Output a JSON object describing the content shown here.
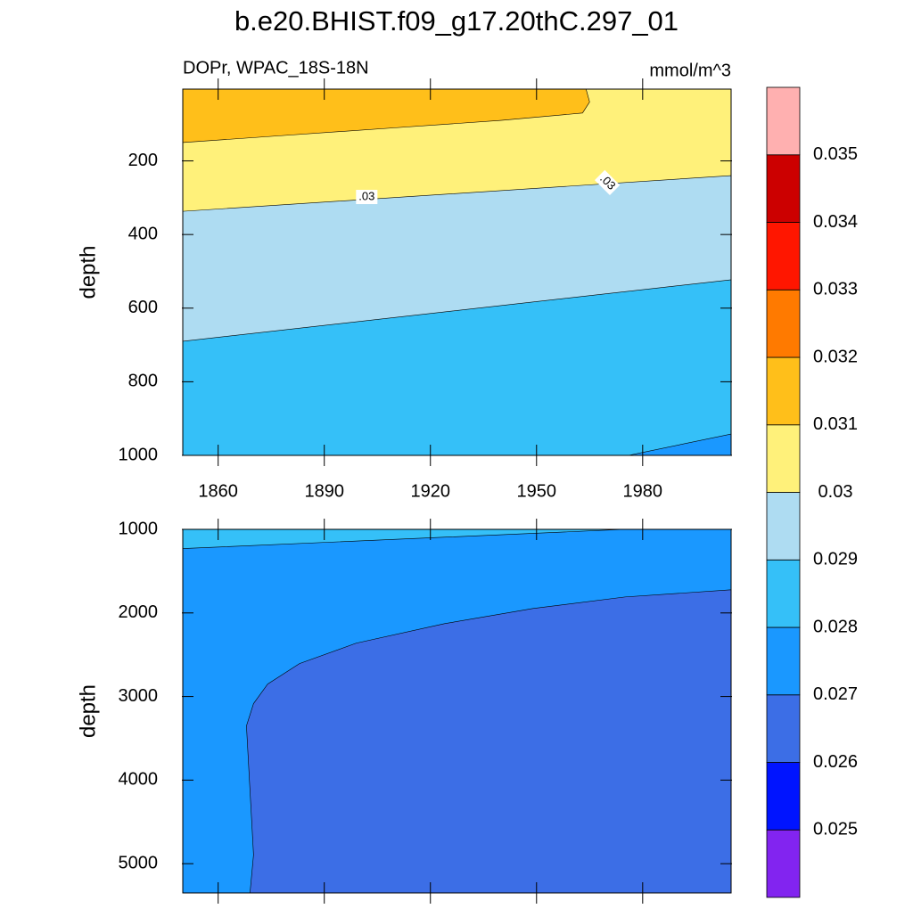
{
  "chart_data": {
    "type": "contour",
    "title": "b.e20.BHIST.f09_g17.20thC.297_01",
    "panels": [
      {
        "left_label": "DOPr, WPAC_18S-18N",
        "right_label": "mmol/m^3",
        "ylabel": "depth",
        "xlim": [
          1850,
          2005
        ],
        "xticks": [
          1860,
          1890,
          1920,
          1950,
          1980
        ],
        "xtick_labels": true,
        "ylim": [
          5,
          1000
        ],
        "yticks": [
          200,
          400,
          600,
          800,
          1000
        ],
        "y_reversed": true,
        "regions": [
          {
            "color": "#fff17a",
            "x": [
              1850,
              2005,
              2005,
              1850
            ],
            "y": [
              5,
              5,
              1000,
              1000
            ]
          },
          {
            "color": "#ffbf1a",
            "x": [
              1850,
              1850,
              1880,
              1910,
              1940,
              1963,
              1965,
              1964
            ],
            "y": [
              5,
              150,
              130,
              110,
              90,
              70,
              40,
              5
            ]
          },
          {
            "color": "#aedcf2",
            "x": [
              1850,
              2005,
              2005,
              1850
            ],
            "y": [
              337,
              240,
              1000,
              1000
            ]
          },
          {
            "color": "#35c0f8",
            "x": [
              1850,
              2005,
              2005,
              1850
            ],
            "y": [
              690,
              523,
              1000,
              1000
            ]
          },
          {
            "color": "#1a98ff",
            "x": [
              1976,
              2005,
              2005
            ],
            "y": [
              1000,
              942,
              1000
            ]
          }
        ],
        "contour_labels": [
          {
            "text": ".03",
            "x": 1902,
            "y": 298
          },
          {
            "text": ".03",
            "x": 1970,
            "y": 259
          }
        ]
      },
      {
        "ylabel": "depth",
        "xlim": [
          1850,
          2005
        ],
        "xticks": [
          1860,
          1890,
          1920,
          1950,
          1980
        ],
        "xtick_labels": false,
        "ylim": [
          1000,
          5350
        ],
        "yticks": [
          1000,
          2000,
          3000,
          4000,
          5000
        ],
        "y_reversed": true,
        "regions": [
          {
            "color": "#35c0f8",
            "x": [
              1850,
              2005,
              2005,
              1850
            ],
            "y": [
              1000,
              1000,
              5350,
              5350
            ]
          },
          {
            "color": "#1a98ff",
            "x": [
              1850,
              1975,
              2005,
              2005,
              1850
            ],
            "y": [
              1230,
              1000,
              1000,
              5350,
              5350
            ]
          },
          {
            "color": "#3c6ee6",
            "x": [
              1869,
              1870,
              1868,
              1870,
              1874,
              1883,
              1899,
              1924,
              1949,
              1975,
              2005,
              2005
            ],
            "y": [
              5350,
              4894,
              3351,
              3085,
              2851,
              2606,
              2362,
              2128,
              1947,
              1809,
              1723,
              5350
            ]
          }
        ],
        "contour_labels": []
      }
    ],
    "colorbar": {
      "levels": [
        0.025,
        0.026,
        0.027,
        0.028,
        0.029,
        0.03,
        0.031,
        0.032,
        0.033,
        0.034,
        0.035
      ],
      "colors": [
        "#8224f0",
        "#0014ff",
        "#3c6ee6",
        "#1a98ff",
        "#35c0f8",
        "#aedcf2",
        "#fff17a",
        "#ffbf1a",
        "#ff7a00",
        "#ff1600",
        "#cc0000",
        "#ffb0b0"
      ]
    }
  }
}
